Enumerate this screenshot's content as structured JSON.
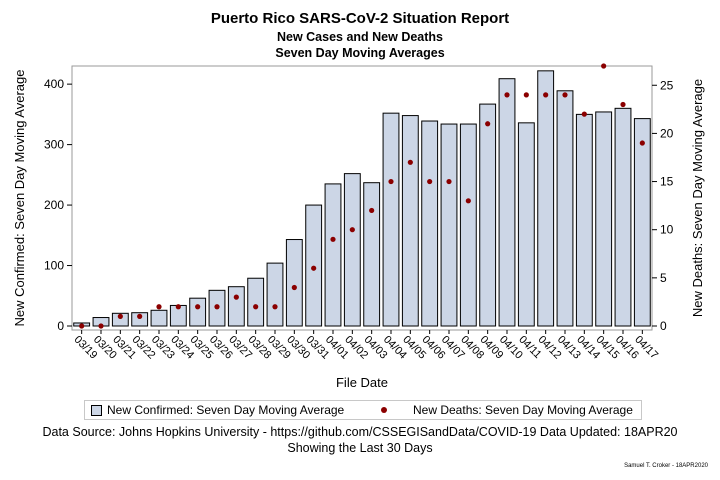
{
  "chart_data": {
    "type": "bar",
    "title": "Puerto Rico SARS-CoV-2 Situation Report",
    "subtitle1": "New Cases and New Deaths",
    "subtitle2": "Seven Day Moving Averages",
    "xlabel": "File Date",
    "ylabel": "New Confirmed: Seven Day Moving Average",
    "y2label": "New Deaths: Seven Day Moving Average",
    "ylim": [
      0,
      430
    ],
    "y2lim": [
      0,
      27
    ],
    "yticks": [
      0,
      100,
      200,
      300,
      400
    ],
    "y2ticks": [
      0,
      5,
      10,
      15,
      20,
      25
    ],
    "grid": false,
    "legend_position": "bottom",
    "categories": [
      "03/19",
      "03/20",
      "03/21",
      "03/22",
      "03/23",
      "03/24",
      "03/25",
      "03/26",
      "03/27",
      "03/28",
      "03/29",
      "03/30",
      "03/31",
      "04/01",
      "04/02",
      "04/03",
      "04/04",
      "04/05",
      "04/06",
      "04/07",
      "04/08",
      "04/09",
      "04/10",
      "04/11",
      "04/12",
      "04/13",
      "04/14",
      "04/15",
      "04/16",
      "04/17"
    ],
    "series": [
      {
        "name": "New Confirmed: Seven Day Moving Average",
        "axis": "left",
        "type": "bar",
        "values": [
          5,
          14,
          21,
          22,
          26,
          34,
          46,
          59,
          65,
          79,
          104,
          143,
          200,
          235,
          252,
          237,
          352,
          348,
          339,
          334,
          334,
          367,
          409,
          336,
          422,
          389,
          350,
          354,
          360,
          343
        ]
      },
      {
        "name": "New Deaths: Seven Day Moving Average",
        "axis": "right",
        "type": "scatter",
        "values": [
          0,
          0,
          1,
          1,
          2,
          2,
          2,
          2,
          3,
          2,
          2,
          4,
          6,
          9,
          10,
          12,
          15,
          17,
          15,
          15,
          13,
          21,
          24,
          24,
          24,
          24,
          22,
          27,
          23,
          19
        ]
      }
    ],
    "colors": {
      "bar_fill": "#ccd6e6",
      "bar_stroke": "#000000",
      "dot": "#8b0000"
    }
  },
  "footer": {
    "source": "Data Source: Johns Hopkins University - https://github.com/CSSEGISandData/COVID-19 Data Updated: 18APR20",
    "window": "Showing the Last 30 Days",
    "credit": "Samuel T. Croker - 18APR2020"
  }
}
